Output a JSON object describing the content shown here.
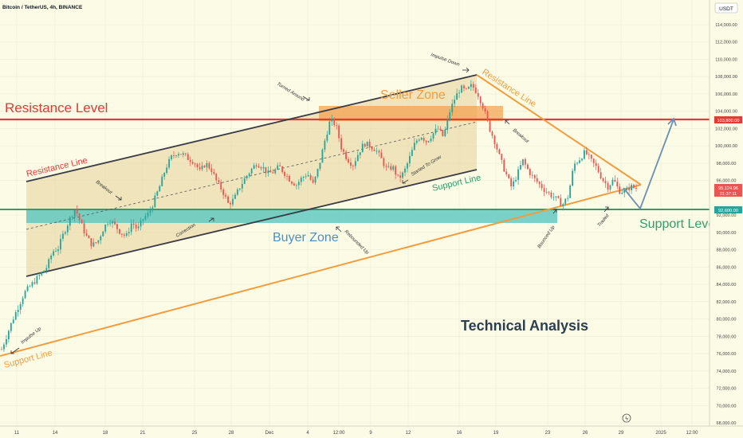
{
  "header": {
    "symbol_title": "Bitcoin / TetherUS, 4h, BINANCE",
    "currency_button": "USDT"
  },
  "price_axis": {
    "ticks": [
      {
        "v": 114000,
        "label": "114,000.00"
      },
      {
        "v": 112000,
        "label": "112,000.00"
      },
      {
        "v": 110000,
        "label": "110,000.00"
      },
      {
        "v": 108000,
        "label": "108,000.00"
      },
      {
        "v": 106000,
        "label": "106,000.00"
      },
      {
        "v": 104000,
        "label": "104,000.00"
      },
      {
        "v": 102000,
        "label": "102,000.00"
      },
      {
        "v": 100000,
        "label": "100,000.00"
      },
      {
        "v": 98000,
        "label": "98,000.00"
      },
      {
        "v": 96000,
        "label": "96,000.00"
      },
      {
        "v": 92000,
        "label": "92,000.00"
      },
      {
        "v": 90000,
        "label": "90,000.00"
      },
      {
        "v": 88000,
        "label": "88,000.00"
      },
      {
        "v": 86000,
        "label": "86,000.00"
      },
      {
        "v": 84000,
        "label": "84,000.00"
      },
      {
        "v": 82000,
        "label": "82,000.00"
      },
      {
        "v": 80000,
        "label": "80,000.00"
      },
      {
        "v": 78000,
        "label": "78,000.00"
      },
      {
        "v": 76000,
        "label": "76,000.00"
      },
      {
        "v": 74000,
        "label": "74,000.00"
      },
      {
        "v": 72000,
        "label": "72,000.00"
      },
      {
        "v": 70000,
        "label": "70,000.00"
      },
      {
        "v": 68000,
        "label": "68,000.00"
      }
    ],
    "resistance_tag": {
      "v": 103800,
      "label": "103,800.00",
      "color": "#e53935"
    },
    "last_price_tag": {
      "v": 95124.96,
      "label": "95,124.96",
      "countdown": "01:37:11",
      "color": "#ef5350"
    },
    "support_tag": {
      "v": 92600,
      "label": "92,600.00",
      "color": "#26a69a"
    }
  },
  "time_axis": {
    "labels": [
      "11",
      "14",
      "18",
      "21",
      "25",
      "28",
      "Dec",
      "4",
      "12:00",
      "9",
      "12",
      "16",
      "19",
      "23",
      "26",
      "29",
      "2025",
      "12:00"
    ]
  },
  "annotations": {
    "resistance_level": "Resistance Level",
    "support_level": "Support Level",
    "seller_zone": "Seller Zone",
    "buyer_zone": "Buyer Zone",
    "resistance_line_channel": "Resistance Line",
    "resistance_line_triangle": "Resistance Line",
    "support_line_channel": "Support Line",
    "support_line_main": "Support Line",
    "technical_analysis": "Technical Analysis",
    "impulse_up": "Impulse Up",
    "breakout_up": "Breakout",
    "correction": "Correction",
    "turned_around": "Turned Around",
    "rebounded_up": "Rebounded Up",
    "started_to_grow": "Started To Grow",
    "impulse_down": "Impulse Down",
    "breakout_down": "Breakout",
    "bounced_up": "Bounced Up",
    "traded": "Traded"
  },
  "colors": {
    "background": "#fbfbe6",
    "up": "#26a69a",
    "down": "#ef5350",
    "resistance": "#e53935",
    "support": "#2e9e6a",
    "orange": "#f39c3c",
    "buyer_zone": "#62c9c1",
    "channel_fill": "#e8d7a4",
    "projection": "#6d8fb0"
  },
  "chart_data": {
    "type": "candlestick",
    "instrument": "Bitcoin / TetherUS",
    "timeframe": "4h",
    "exchange": "BINANCE",
    "x_labels": [
      "11",
      "14",
      "18",
      "21",
      "25",
      "28",
      "Dec",
      "4",
      "12:00",
      "9",
      "12",
      "16",
      "19",
      "23",
      "26",
      "29",
      "2025",
      "12:00"
    ],
    "y_range": [
      68000,
      115000
    ],
    "resistance_level": 103800,
    "support_level": 92600,
    "last_price": 95124.96,
    "seller_zone": [
      102200,
      104200
    ],
    "buyer_zone": [
      91000,
      92600
    ],
    "price_path": [
      [
        0,
        76500
      ],
      [
        4,
        80000
      ],
      [
        8,
        83000
      ],
      [
        12,
        84500
      ],
      [
        16,
        86000
      ],
      [
        18,
        87800
      ],
      [
        20,
        88200
      ],
      [
        22,
        90000
      ],
      [
        24,
        91500
      ],
      [
        26,
        92800
      ],
      [
        28,
        91000
      ],
      [
        30,
        89500
      ],
      [
        32,
        88500
      ],
      [
        34,
        89000
      ],
      [
        36,
        90500
      ],
      [
        38,
        91500
      ],
      [
        40,
        90800
      ],
      [
        42,
        90000
      ],
      [
        44,
        89500
      ],
      [
        46,
        91200
      ],
      [
        48,
        90300
      ],
      [
        50,
        91600
      ],
      [
        52,
        92200
      ],
      [
        54,
        93800
      ],
      [
        56,
        95500
      ],
      [
        58,
        97500
      ],
      [
        60,
        98700
      ],
      [
        62,
        99300
      ],
      [
        64,
        99000
      ],
      [
        66,
        98500
      ],
      [
        68,
        98200
      ],
      [
        70,
        97000
      ],
      [
        72,
        98000
      ],
      [
        74,
        97300
      ],
      [
        76,
        95800
      ],
      [
        78,
        94800
      ],
      [
        80,
        93300
      ],
      [
        82,
        93800
      ],
      [
        84,
        95200
      ],
      [
        86,
        96300
      ],
      [
        88,
        97200
      ],
      [
        90,
        98000
      ],
      [
        92,
        97600
      ],
      [
        94,
        96800
      ],
      [
        96,
        97000
      ],
      [
        98,
        97600
      ],
      [
        100,
        96800
      ],
      [
        102,
        96000
      ],
      [
        104,
        95500
      ],
      [
        106,
        96300
      ],
      [
        108,
        96800
      ],
      [
        110,
        95500
      ],
      [
        112,
        97600
      ],
      [
        114,
        100500
      ],
      [
        116,
        103000
      ],
      [
        118,
        102400
      ],
      [
        120,
        99700
      ],
      [
        122,
        98500
      ],
      [
        124,
        97800
      ],
      [
        126,
        99200
      ],
      [
        128,
        100300
      ],
      [
        130,
        100000
      ],
      [
        132,
        99600
      ],
      [
        134,
        98500
      ],
      [
        136,
        97200
      ],
      [
        138,
        97600
      ],
      [
        140,
        96200
      ],
      [
        142,
        96900
      ],
      [
        144,
        98600
      ],
      [
        146,
        100400
      ],
      [
        148,
        101200
      ],
      [
        150,
        100500
      ],
      [
        152,
        101300
      ],
      [
        154,
        102000
      ],
      [
        156,
        101000
      ],
      [
        158,
        103800
      ],
      [
        160,
        105500
      ],
      [
        162,
        106700
      ],
      [
        164,
        106300
      ],
      [
        166,
        107000
      ],
      [
        168,
        106100
      ],
      [
        170,
        104500
      ],
      [
        172,
        102200
      ],
      [
        174,
        100600
      ],
      [
        176,
        98500
      ],
      [
        178,
        96800
      ],
      [
        180,
        95200
      ],
      [
        182,
        96700
      ],
      [
        184,
        98300
      ],
      [
        186,
        97100
      ],
      [
        188,
        96200
      ],
      [
        190,
        95500
      ],
      [
        192,
        94800
      ],
      [
        194,
        94300
      ],
      [
        196,
        93800
      ],
      [
        198,
        93200
      ],
      [
        200,
        94200
      ],
      [
        202,
        97800
      ],
      [
        204,
        98500
      ],
      [
        206,
        99300
      ],
      [
        208,
        98300
      ],
      [
        210,
        97500
      ],
      [
        212,
        96200
      ],
      [
        214,
        95300
      ],
      [
        216,
        96100
      ],
      [
        218,
        94800
      ],
      [
        220,
        94700
      ],
      [
        222,
        95300
      ],
      [
        224,
        95100
      ]
    ]
  }
}
